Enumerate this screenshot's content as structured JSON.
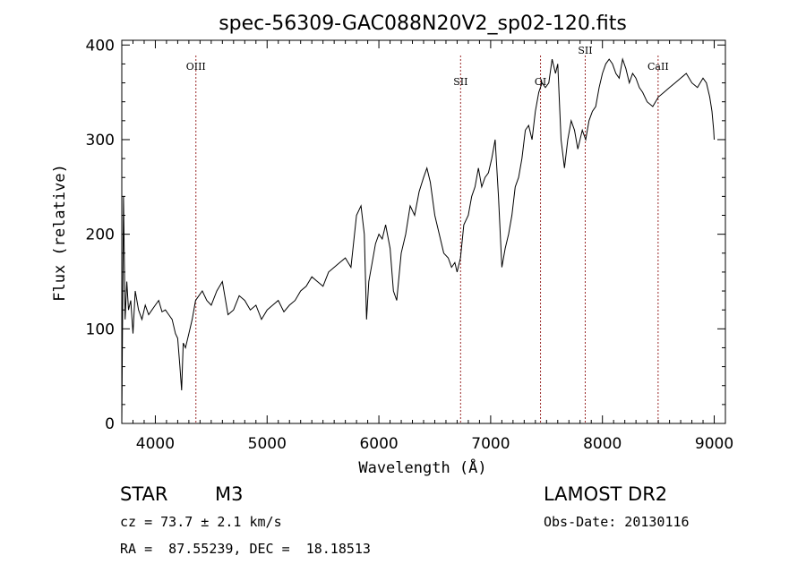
{
  "chart_data": {
    "type": "line",
    "title": "spec-56309-GAC088N20V2_sp02-120.fits",
    "xlabel": "Wavelength (Å)",
    "ylabel": "Flux (relative)",
    "xlim": [
      3700,
      9100
    ],
    "ylim": [
      0,
      405
    ],
    "x_ticks": [
      4000,
      5000,
      6000,
      7000,
      8000,
      9000
    ],
    "y_ticks": [
      0,
      100,
      200,
      300,
      400
    ],
    "grid": false,
    "series": [
      {
        "color": "#000000",
        "x": [
          3700,
          3715,
          3730,
          3745,
          3760,
          3780,
          3800,
          3820,
          3850,
          3880,
          3910,
          3940,
          3970,
          4000,
          4030,
          4060,
          4090,
          4120,
          4150,
          4180,
          4200,
          4220,
          4235,
          4250,
          4270,
          4300,
          4330,
          4360,
          4390,
          4420,
          4460,
          4500,
          4550,
          4600,
          4650,
          4700,
          4750,
          4800,
          4850,
          4900,
          4950,
          5000,
          5050,
          5100,
          5150,
          5200,
          5250,
          5300,
          5350,
          5400,
          5450,
          5500,
          5550,
          5600,
          5650,
          5700,
          5750,
          5800,
          5840,
          5870,
          5890,
          5910,
          5940,
          5970,
          6000,
          6030,
          6060,
          6100,
          6130,
          6160,
          6200,
          6240,
          6280,
          6320,
          6360,
          6400,
          6430,
          6460,
          6500,
          6540,
          6580,
          6620,
          6650,
          6680,
          6700,
          6730,
          6760,
          6800,
          6830,
          6860,
          6890,
          6920,
          6950,
          6980,
          7010,
          7040,
          7070,
          7100,
          7130,
          7160,
          7190,
          7220,
          7250,
          7280,
          7310,
          7340,
          7370,
          7400,
          7430,
          7460,
          7490,
          7520,
          7550,
          7580,
          7600,
          7630,
          7660,
          7690,
          7720,
          7750,
          7780,
          7820,
          7850,
          7880,
          7910,
          7940,
          7970,
          8000,
          8030,
          8060,
          8090,
          8120,
          8150,
          8180,
          8210,
          8240,
          8270,
          8300,
          8330,
          8360,
          8400,
          8450,
          8500,
          8550,
          8600,
          8650,
          8700,
          8750,
          8800,
          8850,
          8900,
          8930,
          8960,
          8980,
          8995,
          9000
        ],
        "values": [
          0,
          240,
          110,
          150,
          120,
          130,
          95,
          140,
          120,
          110,
          125,
          115,
          120,
          125,
          130,
          118,
          120,
          115,
          110,
          95,
          90,
          60,
          35,
          85,
          80,
          95,
          110,
          130,
          135,
          140,
          130,
          125,
          140,
          150,
          115,
          120,
          135,
          130,
          120,
          125,
          110,
          120,
          125,
          130,
          118,
          125,
          130,
          140,
          145,
          155,
          150,
          145,
          160,
          165,
          170,
          175,
          165,
          220,
          230,
          200,
          110,
          150,
          170,
          190,
          200,
          195,
          210,
          185,
          140,
          130,
          180,
          200,
          230,
          220,
          245,
          260,
          270,
          255,
          220,
          200,
          180,
          175,
          165,
          170,
          160,
          175,
          210,
          220,
          240,
          250,
          270,
          250,
          260,
          265,
          280,
          300,
          240,
          165,
          185,
          200,
          220,
          250,
          260,
          280,
          310,
          315,
          300,
          330,
          350,
          360,
          355,
          360,
          385,
          370,
          380,
          300,
          270,
          300,
          320,
          310,
          290,
          310,
          300,
          320,
          330,
          335,
          355,
          370,
          380,
          385,
          380,
          370,
          365,
          385,
          375,
          360,
          370,
          365,
          355,
          350,
          340,
          335,
          345,
          350,
          355,
          360,
          365,
          370,
          360,
          355,
          365,
          360,
          345,
          330,
          310,
          300
        ]
      }
    ],
    "line_markers": [
      {
        "label": "OIII",
        "x": 4363
      },
      {
        "label": "SII",
        "x": 6731
      },
      {
        "label": "OI",
        "x": 7446
      },
      {
        "label": "SII",
        "x": 7846
      },
      {
        "label": "CaII",
        "x": 8498
      }
    ],
    "marker_color": "#9b2a2a"
  },
  "footer": {
    "object_class": "STAR",
    "subclass": "M3",
    "survey": "LAMOST DR2",
    "cz": "cz = 73.7 ± 2.1 km/s",
    "obs_date": "Obs-Date: 20130116",
    "coords": "RA =  87.55239, DEC =  18.18513"
  }
}
